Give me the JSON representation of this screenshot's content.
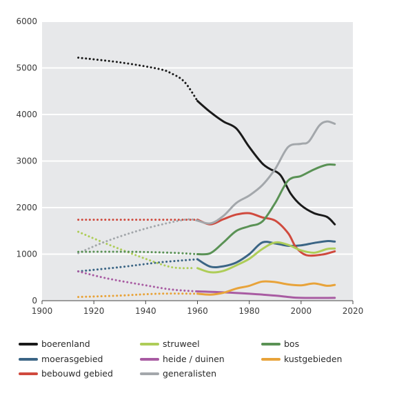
{
  "chart_data": {
    "type": "line",
    "title": "",
    "xlabel": "",
    "ylabel": "",
    "xlim": [
      1900,
      2020
    ],
    "ylim": [
      0,
      6000
    ],
    "x_ticks": [
      1900,
      1920,
      1940,
      1960,
      1980,
      2000,
      2020
    ],
    "y_ticks": [
      0,
      1000,
      2000,
      3000,
      4000,
      5000,
      6000
    ],
    "grid": "horizontal",
    "plot_background": "#e7e8ea",
    "legend_position": "bottom",
    "note": "dotted segments: modelled values before 1960; solid: observed values",
    "series": [
      {
        "name": "boerenland",
        "color": "#1a1a1a",
        "dotted": [
          [
            1914,
            5220
          ],
          [
            1930,
            5120
          ],
          [
            1945,
            4980
          ],
          [
            1950,
            4880
          ],
          [
            1955,
            4700
          ],
          [
            1960,
            4290
          ]
        ],
        "solid": [
          [
            1960,
            4290
          ],
          [
            1965,
            4050
          ],
          [
            1970,
            3850
          ],
          [
            1975,
            3700
          ],
          [
            1980,
            3300
          ],
          [
            1985,
            2950
          ],
          [
            1988,
            2830
          ],
          [
            1992,
            2700
          ],
          [
            1996,
            2300
          ],
          [
            2000,
            2050
          ],
          [
            2005,
            1880
          ],
          [
            2010,
            1800
          ],
          [
            2013,
            1640
          ]
        ]
      },
      {
        "name": "moerasgebied",
        "color": "#3b6585",
        "dotted": [
          [
            1914,
            630
          ],
          [
            1930,
            720
          ],
          [
            1945,
            820
          ],
          [
            1960,
            890
          ]
        ],
        "solid": [
          [
            1960,
            890
          ],
          [
            1965,
            730
          ],
          [
            1970,
            740
          ],
          [
            1975,
            820
          ],
          [
            1980,
            1000
          ],
          [
            1985,
            1250
          ],
          [
            1990,
            1230
          ],
          [
            1995,
            1180
          ],
          [
            2000,
            1190
          ],
          [
            2005,
            1240
          ],
          [
            2010,
            1280
          ],
          [
            2013,
            1270
          ]
        ]
      },
      {
        "name": "bebouwd gebied",
        "color": "#d04a3e",
        "dotted": [
          [
            1914,
            1740
          ],
          [
            1935,
            1740
          ],
          [
            1960,
            1740
          ]
        ],
        "solid": [
          [
            1960,
            1740
          ],
          [
            1965,
            1640
          ],
          [
            1970,
            1750
          ],
          [
            1975,
            1850
          ],
          [
            1980,
            1880
          ],
          [
            1985,
            1790
          ],
          [
            1990,
            1720
          ],
          [
            1995,
            1450
          ],
          [
            1998,
            1150
          ],
          [
            2002,
            980
          ],
          [
            2008,
            990
          ],
          [
            2013,
            1060
          ]
        ]
      },
      {
        "name": "struweel",
        "color": "#aecd58",
        "dotted": [
          [
            1914,
            1480
          ],
          [
            1925,
            1220
          ],
          [
            1940,
            900
          ],
          [
            1950,
            720
          ],
          [
            1958,
            700
          ]
        ],
        "solid": [
          [
            1960,
            700
          ],
          [
            1965,
            610
          ],
          [
            1970,
            640
          ],
          [
            1975,
            760
          ],
          [
            1980,
            900
          ],
          [
            1985,
            1110
          ],
          [
            1990,
            1250
          ],
          [
            1995,
            1200
          ],
          [
            2000,
            1080
          ],
          [
            2005,
            1030
          ],
          [
            2010,
            1110
          ],
          [
            2013,
            1120
          ]
        ]
      },
      {
        "name": "heide / duinen",
        "color": "#a85ba2",
        "dotted": [
          [
            1914,
            630
          ],
          [
            1925,
            480
          ],
          [
            1940,
            330
          ],
          [
            1950,
            240
          ],
          [
            1960,
            200
          ]
        ],
        "solid": [
          [
            1960,
            200
          ],
          [
            1970,
            180
          ],
          [
            1980,
            150
          ],
          [
            1990,
            110
          ],
          [
            1995,
            80
          ],
          [
            2000,
            60
          ],
          [
            2013,
            60
          ]
        ]
      },
      {
        "name": "generalisten",
        "color": "#a3a7ab",
        "dotted": [
          [
            1914,
            1020
          ],
          [
            1925,
            1280
          ],
          [
            1940,
            1550
          ],
          [
            1955,
            1740
          ],
          [
            1960,
            1720
          ]
        ],
        "solid": [
          [
            1960,
            1720
          ],
          [
            1965,
            1660
          ],
          [
            1970,
            1820
          ],
          [
            1975,
            2100
          ],
          [
            1980,
            2260
          ],
          [
            1985,
            2480
          ],
          [
            1990,
            2830
          ],
          [
            1995,
            3300
          ],
          [
            2000,
            3370
          ],
          [
            2003,
            3420
          ],
          [
            2007,
            3760
          ],
          [
            2010,
            3850
          ],
          [
            2013,
            3800
          ]
        ]
      },
      {
        "name": "bos",
        "color": "#5a9255",
        "dotted": [
          [
            1914,
            1050
          ],
          [
            1935,
            1050
          ],
          [
            1950,
            1030
          ],
          [
            1960,
            1000
          ]
        ],
        "solid": [
          [
            1960,
            1000
          ],
          [
            1965,
            1020
          ],
          [
            1970,
            1250
          ],
          [
            1975,
            1500
          ],
          [
            1980,
            1600
          ],
          [
            1985,
            1700
          ],
          [
            1990,
            2100
          ],
          [
            1995,
            2580
          ],
          [
            2000,
            2680
          ],
          [
            2005,
            2820
          ],
          [
            2010,
            2920
          ],
          [
            2013,
            2920
          ]
        ]
      },
      {
        "name": "kustgebieden",
        "color": "#e8a33a",
        "dotted": [
          [
            1914,
            80
          ],
          [
            1930,
            110
          ],
          [
            1945,
            150
          ],
          [
            1960,
            150
          ]
        ],
        "solid": [
          [
            1960,
            150
          ],
          [
            1965,
            130
          ],
          [
            1970,
            170
          ],
          [
            1975,
            260
          ],
          [
            1980,
            320
          ],
          [
            1985,
            410
          ],
          [
            1990,
            400
          ],
          [
            1995,
            350
          ],
          [
            2000,
            330
          ],
          [
            2005,
            370
          ],
          [
            2010,
            320
          ],
          [
            2013,
            340
          ]
        ]
      }
    ],
    "legend": [
      {
        "label": "boerenland",
        "color": "#1a1a1a"
      },
      {
        "label": "struweel",
        "color": "#aecd58"
      },
      {
        "label": "bos",
        "color": "#5a9255"
      },
      {
        "label": "moerasgebied",
        "color": "#3b6585"
      },
      {
        "label": "heide / duinen",
        "color": "#a85ba2"
      },
      {
        "label": "kustgebieden",
        "color": "#e8a33a"
      },
      {
        "label": "bebouwd gebied",
        "color": "#d04a3e"
      },
      {
        "label": "generalisten",
        "color": "#a3a7ab"
      }
    ]
  }
}
